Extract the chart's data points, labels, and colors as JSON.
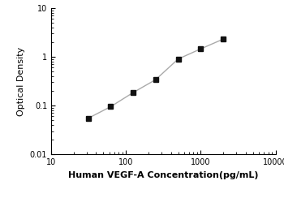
{
  "x_data": [
    31.25,
    62.5,
    125,
    250,
    500,
    1000,
    2000
  ],
  "y_data": [
    0.055,
    0.095,
    0.185,
    0.34,
    0.9,
    1.45,
    2.3
  ],
  "xlim": [
    10,
    10000
  ],
  "ylim": [
    0.01,
    10
  ],
  "xlabel": "Human VEGF-A Concentration(pg/mL)",
  "ylabel": "Optical Density",
  "x_ticks": [
    10,
    100,
    1000,
    10000
  ],
  "y_ticks": [
    0.01,
    0.1,
    1,
    10
  ],
  "line_color": "#aaaaaa",
  "marker_color": "#111111",
  "marker_style": "s",
  "marker_size": 4,
  "line_width": 1.0,
  "background_color": "#ffffff",
  "xlabel_fontsize": 8,
  "ylabel_fontsize": 8,
  "tick_fontsize": 7,
  "xlabel_bold": true
}
